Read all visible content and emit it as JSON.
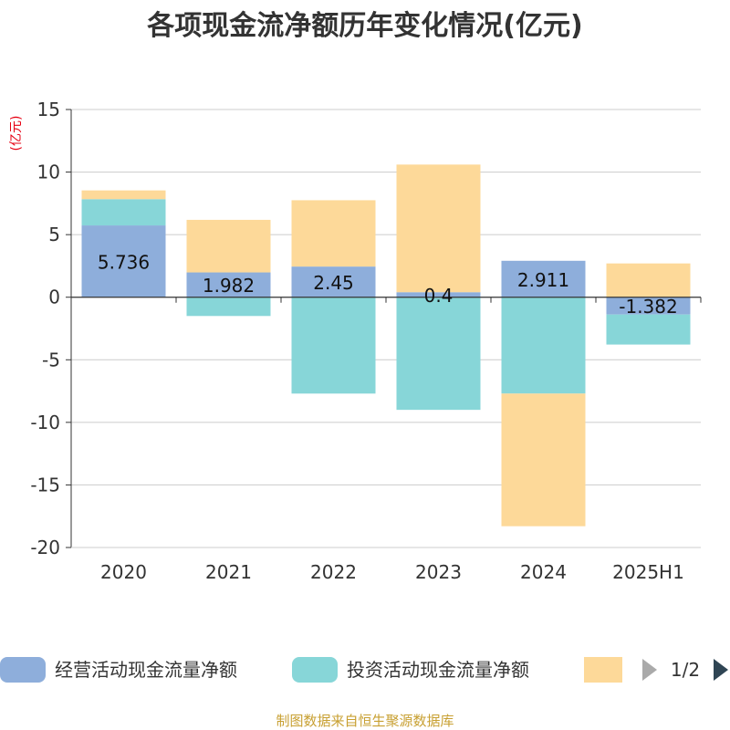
{
  "chart_data": {
    "type": "bar",
    "stacked": true,
    "title": "各项现金流净额历年变化情况(亿元)",
    "ylabel": "(亿元)",
    "ylim": [
      -20,
      15
    ],
    "yticks": [
      15,
      10,
      5,
      0,
      -5,
      -10,
      -15,
      -20
    ],
    "categories": [
      "2020",
      "2021",
      "2022",
      "2023",
      "2024",
      "2025H1"
    ],
    "series": [
      {
        "name": "经营活动现金流量净额",
        "color": "#8eaedb",
        "values": [
          5.736,
          1.982,
          2.45,
          0.4,
          2.911,
          -1.382
        ],
        "labels": [
          "5.736",
          "1.982",
          "2.45",
          "0.4",
          "2.911",
          "-1.382"
        ]
      },
      {
        "name": "投资活动现金流量净额",
        "color": "#87d6d8",
        "values": [
          2.1,
          -1.5,
          -7.7,
          -9.0,
          -7.7,
          -2.4
        ]
      },
      {
        "name": "",
        "color": "#fdd999",
        "values": [
          0.7,
          4.2,
          5.3,
          10.2,
          -10.6,
          2.7
        ]
      }
    ],
    "grid": true,
    "legend_position": "bottom"
  },
  "legend": {
    "pager": "1/2"
  },
  "source": "制图数据来自恒生聚源数据库"
}
